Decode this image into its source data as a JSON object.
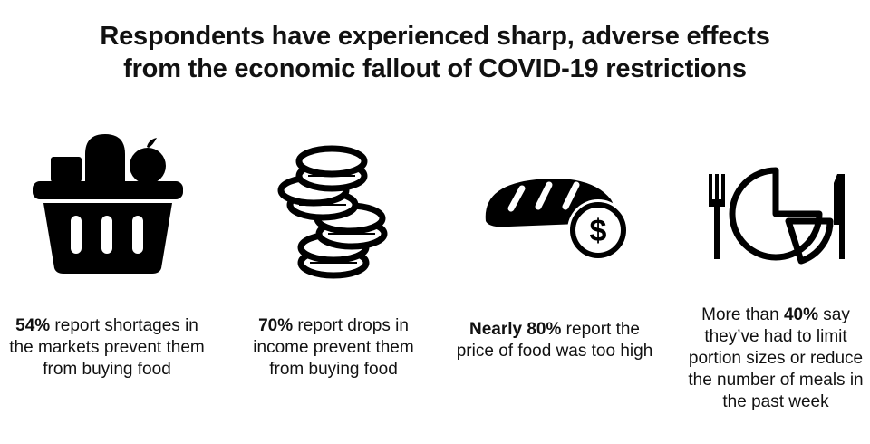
{
  "title": {
    "line1": "Respondents have experienced sharp, adverse effects",
    "line2": "from the economic fallout of COVID-19 restrictions"
  },
  "items": [
    {
      "icon": "food-basket-icon",
      "bold": "54%",
      "text": " report shortages in the markets prevent them from buying food"
    },
    {
      "icon": "coin-stacks-icon",
      "bold": "70%",
      "text": " report drops in income prevent them from buying food"
    },
    {
      "icon": "bread-price-icon",
      "bold": "Nearly 80%",
      "text": " report the price of food was too high"
    },
    {
      "icon": "reduced-plate-icon",
      "pre": "More than ",
      "bold": "40%",
      "text": " say they’ve had to limit portion sizes or reduce the number of meals in the past week"
    }
  ]
}
